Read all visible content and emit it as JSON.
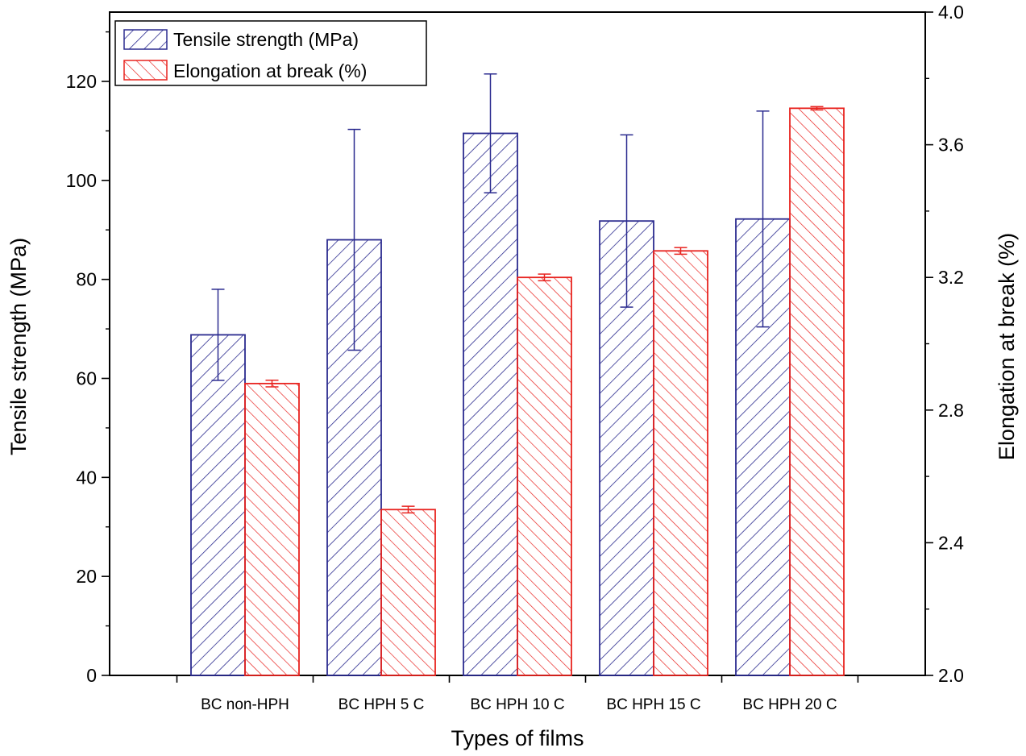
{
  "chart_data": {
    "type": "bar",
    "xlabel": "Types of films",
    "categories": [
      "BC non-HPH",
      "BC HPH 5 C",
      "BC HPH 10 C",
      "BC HPH 15 C",
      "BC HPH 20 C"
    ],
    "series": [
      {
        "name": "Tensile strength (MPa)",
        "axis": "left",
        "color": "#2b2b8f",
        "values": [
          68.8,
          88.0,
          109.5,
          91.8,
          92.2
        ],
        "errors": [
          9.2,
          22.3,
          12.0,
          17.4,
          21.8
        ]
      },
      {
        "name": "Elongation at break (%)",
        "axis": "right",
        "color": "#e8231f",
        "values": [
          2.88,
          2.5,
          3.2,
          3.28,
          3.71
        ],
        "errors": [
          0.01,
          0.01,
          0.01,
          0.01,
          0.005
        ]
      }
    ],
    "left_axis": {
      "label": "Tensile strength (MPa)",
      "ylim": [
        0,
        134
      ],
      "ticks": [
        "0",
        "20",
        "40",
        "60",
        "80",
        "100",
        "120"
      ]
    },
    "right_axis": {
      "label": "Elongation at break (%)",
      "ylim": [
        2.0,
        4.0
      ],
      "ticks": [
        "2.0",
        "2.4",
        "2.8",
        "3.2",
        "3.6",
        "4.0"
      ]
    },
    "legend_position": "top-left",
    "grid": false
  }
}
